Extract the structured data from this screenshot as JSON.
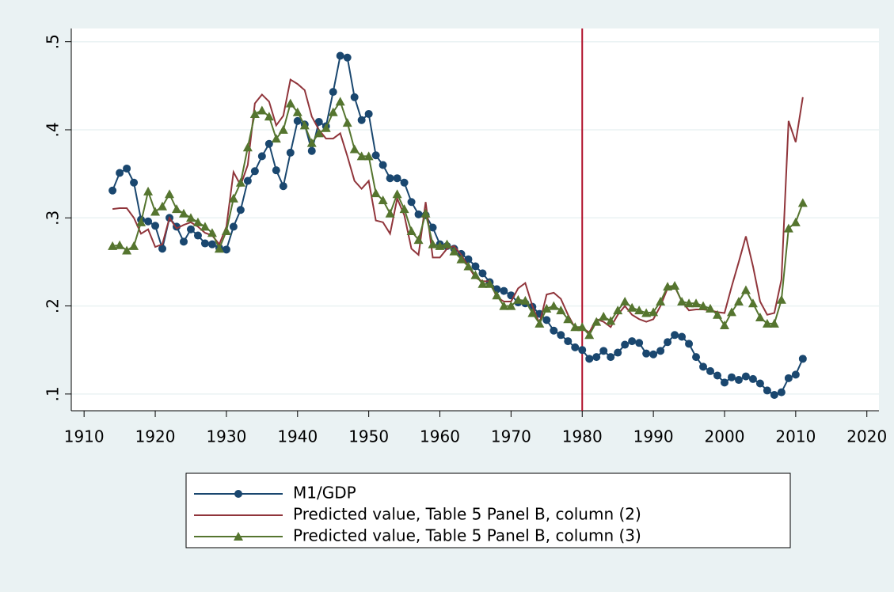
{
  "chart_data": {
    "type": "line",
    "x": [
      1914,
      1915,
      1916,
      1917,
      1918,
      1919,
      1920,
      1921,
      1922,
      1923,
      1924,
      1925,
      1926,
      1927,
      1928,
      1929,
      1930,
      1931,
      1932,
      1933,
      1934,
      1935,
      1936,
      1937,
      1938,
      1939,
      1940,
      1941,
      1942,
      1943,
      1944,
      1945,
      1946,
      1947,
      1948,
      1949,
      1950,
      1951,
      1952,
      1953,
      1954,
      1955,
      1956,
      1957,
      1958,
      1959,
      1960,
      1961,
      1962,
      1963,
      1964,
      1965,
      1966,
      1967,
      1968,
      1969,
      1970,
      1971,
      1972,
      1973,
      1974,
      1975,
      1976,
      1977,
      1978,
      1979,
      1980,
      1981,
      1982,
      1983,
      1984,
      1985,
      1986,
      1987,
      1988,
      1989,
      1990,
      1991,
      1992,
      1993,
      1994,
      1995,
      1996,
      1997,
      1998,
      1999,
      2000,
      2001,
      2002,
      2003,
      2004,
      2005,
      2006,
      2007,
      2008,
      2009,
      2010,
      2011
    ],
    "series": [
      {
        "name": "M1/GDP",
        "color": "#1a476f",
        "marker": "circle",
        "values": [
          0.331,
          0.351,
          0.356,
          0.34,
          0.298,
          0.296,
          0.291,
          0.265,
          0.3,
          0.29,
          0.273,
          0.287,
          0.28,
          0.271,
          0.27,
          0.266,
          0.264,
          0.29,
          0.309,
          0.342,
          0.353,
          0.37,
          0.384,
          0.354,
          0.336,
          0.374,
          0.41,
          0.406,
          0.376,
          0.409,
          0.404,
          0.443,
          0.484,
          0.482,
          0.437,
          0.411,
          0.418,
          0.371,
          0.36,
          0.345,
          0.345,
          0.34,
          0.318,
          0.304,
          0.303,
          0.289,
          0.27,
          0.268,
          0.265,
          0.259,
          0.253,
          0.245,
          0.237,
          0.227,
          0.219,
          0.217,
          0.212,
          0.204,
          0.203,
          0.199,
          0.191,
          0.184,
          0.172,
          0.167,
          0.16,
          0.153,
          0.15,
          0.14,
          0.142,
          0.149,
          0.142,
          0.147,
          0.156,
          0.16,
          0.158,
          0.146,
          0.145,
          0.149,
          0.159,
          0.167,
          0.165,
          0.157,
          0.142,
          0.131,
          0.126,
          0.121,
          0.113,
          0.119,
          0.116,
          0.12,
          0.117,
          0.112,
          0.104,
          0.099,
          0.102,
          0.118,
          0.122,
          0.14
        ]
      },
      {
        "name": "Predicted value, Table 5 Panel B, column (2)",
        "color": "#90353b",
        "marker": "none",
        "values": [
          0.31,
          0.311,
          0.311,
          0.3,
          0.282,
          0.287,
          0.267,
          0.27,
          0.3,
          0.288,
          0.292,
          0.295,
          0.29,
          0.283,
          0.28,
          0.27,
          0.29,
          0.352,
          0.337,
          0.36,
          0.43,
          0.44,
          0.432,
          0.405,
          0.416,
          0.457,
          0.452,
          0.445,
          0.415,
          0.4,
          0.39,
          0.39,
          0.396,
          0.37,
          0.342,
          0.333,
          0.342,
          0.297,
          0.295,
          0.282,
          0.322,
          0.303,
          0.265,
          0.258,
          0.318,
          0.255,
          0.255,
          0.265,
          0.268,
          0.258,
          0.245,
          0.232,
          0.228,
          0.228,
          0.21,
          0.205,
          0.205,
          0.22,
          0.226,
          0.2,
          0.18,
          0.213,
          0.215,
          0.208,
          0.19,
          0.175,
          0.175,
          0.17,
          0.185,
          0.182,
          0.176,
          0.19,
          0.2,
          0.19,
          0.185,
          0.182,
          0.185,
          0.2,
          0.22,
          0.222,
          0.205,
          0.195,
          0.196,
          0.196,
          0.195,
          0.193,
          0.192,
          0.222,
          0.25,
          0.279,
          0.245,
          0.205,
          0.19,
          0.192,
          0.23,
          0.41,
          0.386,
          0.437
        ]
      },
      {
        "name": "Predicted value, Table 5 Panel B, column (3)",
        "color": "#55752f",
        "marker": "triangle",
        "values": [
          0.268,
          0.269,
          0.263,
          0.268,
          0.295,
          0.33,
          0.307,
          0.313,
          0.327,
          0.31,
          0.305,
          0.3,
          0.295,
          0.29,
          0.283,
          0.265,
          0.285,
          0.322,
          0.34,
          0.38,
          0.418,
          0.422,
          0.415,
          0.39,
          0.4,
          0.43,
          0.42,
          0.405,
          0.385,
          0.396,
          0.402,
          0.42,
          0.432,
          0.408,
          0.378,
          0.37,
          0.37,
          0.328,
          0.32,
          0.305,
          0.327,
          0.31,
          0.285,
          0.275,
          0.305,
          0.27,
          0.268,
          0.27,
          0.262,
          0.253,
          0.245,
          0.235,
          0.225,
          0.225,
          0.212,
          0.2,
          0.2,
          0.207,
          0.206,
          0.192,
          0.18,
          0.197,
          0.2,
          0.195,
          0.185,
          0.176,
          0.176,
          0.167,
          0.182,
          0.188,
          0.183,
          0.195,
          0.205,
          0.198,
          0.195,
          0.192,
          0.193,
          0.205,
          0.222,
          0.223,
          0.205,
          0.203,
          0.203,
          0.2,
          0.197,
          0.19,
          0.178,
          0.193,
          0.205,
          0.218,
          0.203,
          0.187,
          0.18,
          0.18,
          0.207,
          0.288,
          0.295,
          0.317
        ]
      }
    ],
    "xlim": [
      1908.2,
      2021.7
    ],
    "xticks": [
      1910,
      1920,
      1930,
      1940,
      1950,
      1960,
      1970,
      1980,
      1990,
      2000,
      2010,
      2020
    ],
    "ylim": [
      0.081,
      0.515
    ],
    "yticks": [
      {
        "value": 0.1,
        "label": ".1"
      },
      {
        "value": 0.2,
        "label": ".2"
      },
      {
        "value": 0.3,
        "label": ".3"
      },
      {
        "value": 0.4,
        "label": ".4"
      },
      {
        "value": 0.5,
        "label": ".5"
      }
    ],
    "grid": true,
    "xline": 1980,
    "xline_color": "#b0102a",
    "legend": "bottom"
  }
}
